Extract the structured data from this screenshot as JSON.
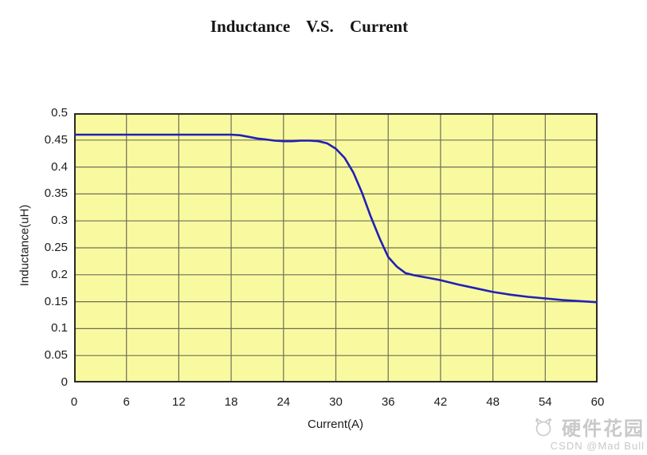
{
  "page": {
    "background": "#ffffff"
  },
  "chart_data": {
    "type": "line",
    "title": "Inductance V.S. Current",
    "xlabel": "Current(A)",
    "ylabel": "Inductance(uH)",
    "xlim": [
      0,
      60
    ],
    "ylim": [
      0,
      0.5
    ],
    "x_ticks": [
      0,
      6,
      12,
      18,
      24,
      30,
      36,
      42,
      48,
      54,
      60
    ],
    "x_tick_labels": [
      "0",
      "6",
      "12",
      "18",
      "24",
      "30",
      "36",
      "42",
      "48",
      "54",
      "60"
    ],
    "y_ticks": [
      0,
      0.05,
      0.1,
      0.15,
      0.2,
      0.25,
      0.3,
      0.35,
      0.4,
      0.45,
      0.5
    ],
    "y_tick_labels": [
      "0",
      "0.05",
      "0.1",
      "0.15",
      "0.2",
      "0.25",
      "0.3",
      "0.35",
      "0.4",
      "0.45",
      "0.5"
    ],
    "grid": true,
    "legend": false,
    "plot_bg_color": "#f9f9a0",
    "grid_color": "#6f6f58",
    "border_color": "#2a2a22",
    "line_color": "#2121b4",
    "series": [
      {
        "name": "Inductance",
        "points": [
          [
            0,
            0.46
          ],
          [
            3,
            0.46
          ],
          [
            6,
            0.46
          ],
          [
            9,
            0.46
          ],
          [
            12,
            0.46
          ],
          [
            15,
            0.46
          ],
          [
            18,
            0.46
          ],
          [
            19,
            0.459
          ],
          [
            20,
            0.456
          ],
          [
            21,
            0.453
          ],
          [
            22,
            0.451
          ],
          [
            23,
            0.449
          ],
          [
            24,
            0.448
          ],
          [
            25,
            0.448
          ],
          [
            26,
            0.449
          ],
          [
            27,
            0.449
          ],
          [
            28,
            0.448
          ],
          [
            29,
            0.444
          ],
          [
            30,
            0.434
          ],
          [
            31,
            0.417
          ],
          [
            32,
            0.39
          ],
          [
            33,
            0.352
          ],
          [
            34,
            0.308
          ],
          [
            35,
            0.268
          ],
          [
            36,
            0.233
          ],
          [
            37,
            0.215
          ],
          [
            38,
            0.203
          ],
          [
            39,
            0.199
          ],
          [
            40,
            0.196
          ],
          [
            41,
            0.193
          ],
          [
            42,
            0.19
          ],
          [
            44,
            0.182
          ],
          [
            46,
            0.175
          ],
          [
            48,
            0.168
          ],
          [
            50,
            0.163
          ],
          [
            52,
            0.159
          ],
          [
            54,
            0.156
          ],
          [
            56,
            0.153
          ],
          [
            58,
            0.151
          ],
          [
            60,
            0.149
          ]
        ]
      }
    ]
  },
  "watermark": {
    "brand": "硬件花园",
    "byline": "CSDN @Mad Bull",
    "icon": "cat-logo-icon",
    "color": "#c9c9c9"
  }
}
